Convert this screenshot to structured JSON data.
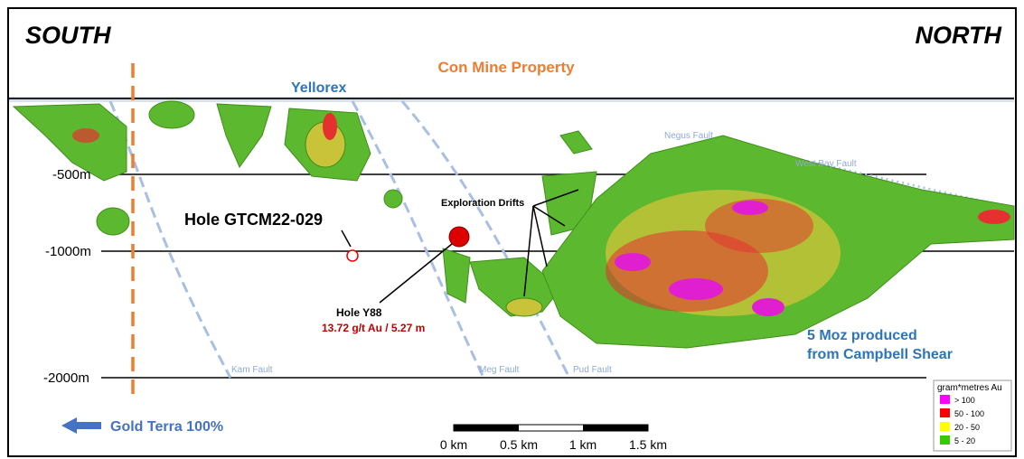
{
  "header": {
    "south": "SOUTH",
    "north": "NORTH",
    "property": "Con Mine Property",
    "yellorex": "Yellorex"
  },
  "depths": [
    "-500m",
    "-1000m",
    "-2000m"
  ],
  "holes": {
    "gtcm": "Hole GTCM22-029",
    "drifts": "Exploration Drifts",
    "y88": "Hole Y88",
    "y88_result": "13.72 g/t Au / 5.27 m"
  },
  "faults": [
    "Kam Fault",
    "Meg Fault",
    "Pud Fault",
    "Negus Fault",
    "West Bay Fault"
  ],
  "production": [
    "5 Moz produced",
    "from Campbell Shear"
  ],
  "ownership": "Gold Terra 100%",
  "scale": [
    "0 km",
    "0.5 km",
    "1 km",
    "1.5 km"
  ],
  "legend": {
    "title": "gram*metres Au",
    "items": [
      "> 100",
      "50 - 100",
      "20 - 50",
      "5 - 20"
    ]
  }
}
